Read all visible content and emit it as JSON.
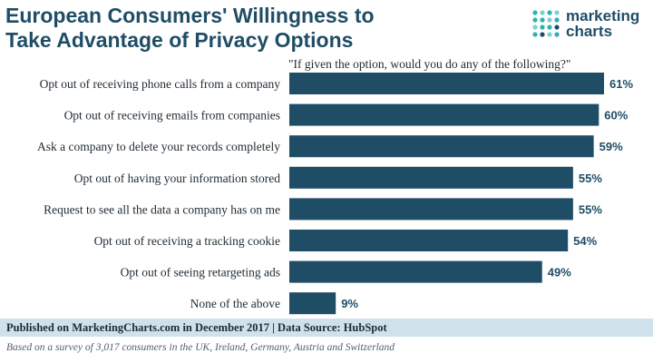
{
  "header": {
    "title_line1": "European Consumers' Willingness to",
    "title_line2": "Take Advantage of Privacy Options"
  },
  "logo": {
    "line1": "marketing",
    "line2": "charts",
    "dot_colors": [
      "#2bb3b1",
      "#7fd0c9",
      "#1f4d66"
    ]
  },
  "chart_data": {
    "type": "bar",
    "orientation": "horizontal",
    "subtitle": "\"If given the option, would you do any of the following?\"",
    "categories": [
      "Opt out of receiving phone calls from a company",
      "Opt out of receiving emails from companies",
      "Ask a company to delete your records completely",
      "Opt out of having your information stored",
      "Request to see all the data a company has on me",
      "Opt out of receiving a tracking cookie",
      "Opt out of seeing retargeting ads",
      "None of the above"
    ],
    "values": [
      61,
      60,
      59,
      55,
      55,
      54,
      49,
      9
    ],
    "value_labels": [
      "61%",
      "60%",
      "59%",
      "55%",
      "55%",
      "54%",
      "49%",
      "9%"
    ],
    "xlim": [
      0,
      61
    ],
    "grid": false,
    "bar_color": "#1f4d66"
  },
  "footer": {
    "source": "Published on MarketingCharts.com in December 2017 | Data Source: HubSpot",
    "note": "Based on a survey of 3,017 consumers in the UK, Ireland, Germany, Austria and Switzerland",
    "band_color": "#cfe2ec"
  }
}
